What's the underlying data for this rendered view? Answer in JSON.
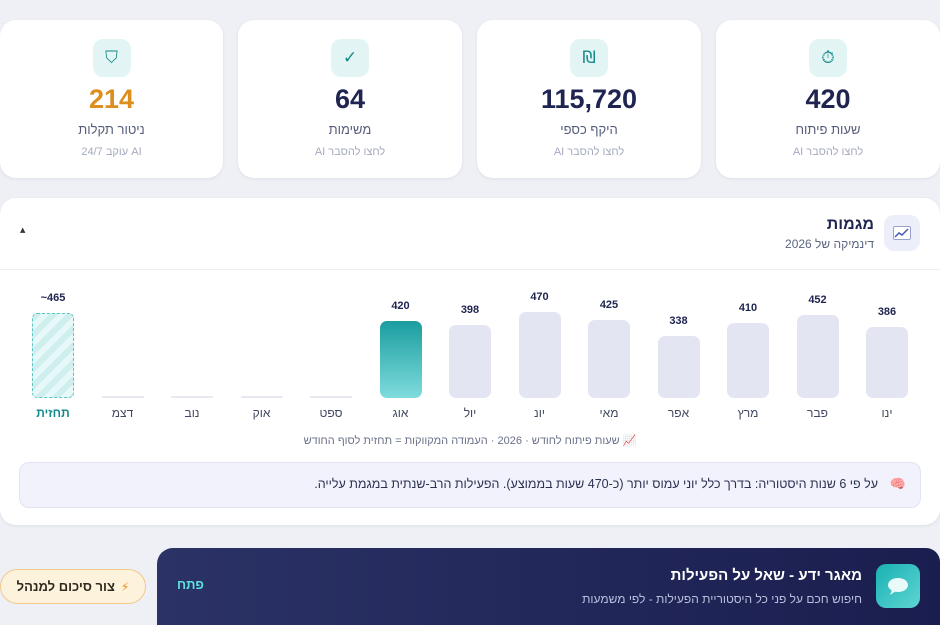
{
  "stats": [
    {
      "icon": "stopwatch-icon",
      "glyph": "⏱",
      "value": "420",
      "label": "שעות פיתוח",
      "sub": "לחצו להסבר AI"
    },
    {
      "icon": "shekel-icon",
      "glyph": "₪",
      "value": "115,720",
      "label": "היקף כספי",
      "sub": "לחצו להסבר AI"
    },
    {
      "icon": "checkmark-icon",
      "glyph": "✓",
      "value": "64",
      "label": "משימות",
      "sub": "לחצו להסבר AI"
    },
    {
      "icon": "shield-icon",
      "glyph": "⛉",
      "value": "214",
      "label": "ניטור תקלות",
      "sub": "AI עוקב 24/7",
      "accent": "#de8e1e"
    }
  ],
  "trend": {
    "title": "מגמות",
    "subtitle": "דינמיקה של 2026",
    "icon": "chart-trend-icon",
    "collapse_glyph": "▲",
    "legend": "📈 שעות פיתוח לחודש · 2026 · העמודה המקווקות = תחזית לסוף החודש",
    "insight_icon": "brain-icon",
    "insight_glyph": "🧠",
    "insight": "על פי 6 שנות היסטוריה: בדרך כלל יוני עמוס יותר (כ-470 שעות בממוצע). הפעילות הרב-שנתית במגמת עלייה."
  },
  "chart_data": {
    "type": "bar",
    "categories": [
      "ינו",
      "פבר",
      "מרץ",
      "אפר",
      "מאי",
      "יונ",
      "יול",
      "אוג",
      "ספט",
      "אוק",
      "נוב",
      "דצמ",
      "תחזית"
    ],
    "values": [
      386,
      452,
      410,
      338,
      425,
      470,
      398,
      420,
      null,
      null,
      null,
      null,
      465
    ],
    "value_labels": [
      "386",
      "452",
      "410",
      "338",
      "425",
      "470",
      "398",
      "420",
      "",
      "",
      "",
      "",
      "465~"
    ],
    "current_index": 7,
    "forecast_index": 12,
    "colors": {
      "default": "#e3e5f2",
      "current": "#1a9da0",
      "forecast": "#5bc4c4"
    }
  },
  "knowledge": {
    "title": "מאגר ידע - שאל על הפעילות",
    "subtitle": "חיפוש חכם על פני כל היסטוריית הפעילות - לפי משמעות",
    "open_label": "פתח",
    "icon": "chat-bubble-icon"
  },
  "summary_button": {
    "label": "צור סיכום למנהל",
    "icon": "lightning-icon",
    "glyph": "⚡"
  }
}
